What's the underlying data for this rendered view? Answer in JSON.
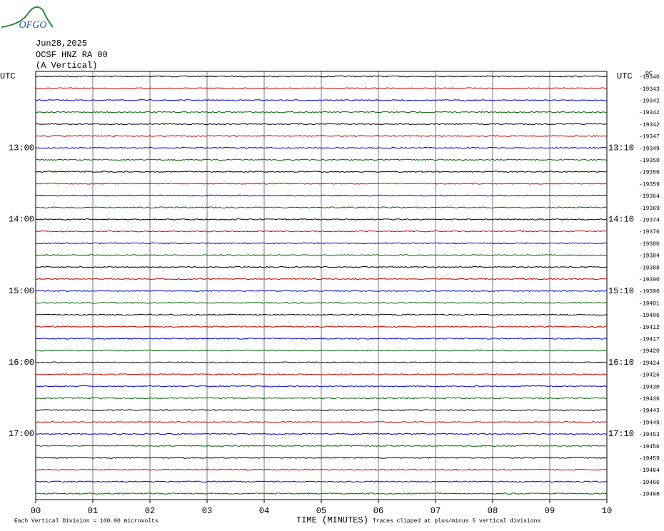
{
  "logo": "OFGO",
  "header": {
    "date": "Jun28,2025",
    "station": "OCSF HNZ RA 00",
    "component": "(A Vertical)"
  },
  "dc_header": "DC",
  "rows": [
    {
      "color": "#000000",
      "left_label": "UTC",
      "right_label": "UTC",
      "dc": -19340
    },
    {
      "color": "#cc0000",
      "left_label": null,
      "right_label": null,
      "dc": -19343
    },
    {
      "color": "#0000cc",
      "left_label": null,
      "right_label": null,
      "dc": -19342
    },
    {
      "color": "#006600",
      "left_label": null,
      "right_label": null,
      "dc": -19342
    },
    {
      "color": "#000000",
      "left_label": null,
      "right_label": null,
      "dc": -19342
    },
    {
      "color": "#cc0000",
      "left_label": null,
      "right_label": null,
      "dc": -19347
    },
    {
      "color": "#0000cc",
      "left_label": "13:00",
      "right_label": "13:10",
      "dc": -19349
    },
    {
      "color": "#006600",
      "left_label": null,
      "right_label": null,
      "dc": -19350
    },
    {
      "color": "#000000",
      "left_label": null,
      "right_label": null,
      "dc": -19356
    },
    {
      "color": "#cc0000",
      "left_label": null,
      "right_label": null,
      "dc": -19359
    },
    {
      "color": "#0000cc",
      "left_label": null,
      "right_label": null,
      "dc": -19364
    },
    {
      "color": "#006600",
      "left_label": null,
      "right_label": null,
      "dc": -19369
    },
    {
      "color": "#000000",
      "left_label": "14:00",
      "right_label": "14:10",
      "dc": -19374
    },
    {
      "color": "#cc0000",
      "left_label": null,
      "right_label": null,
      "dc": -19376
    },
    {
      "color": "#0000cc",
      "left_label": null,
      "right_label": null,
      "dc": -19380
    },
    {
      "color": "#006600",
      "left_label": null,
      "right_label": null,
      "dc": -19384
    },
    {
      "color": "#000000",
      "left_label": null,
      "right_label": null,
      "dc": -19388
    },
    {
      "color": "#cc0000",
      "left_label": null,
      "right_label": null,
      "dc": -19390
    },
    {
      "color": "#0000cc",
      "left_label": "15:00",
      "right_label": "15:10",
      "dc": -19396
    },
    {
      "color": "#006600",
      "left_label": null,
      "right_label": null,
      "dc": -19401
    },
    {
      "color": "#000000",
      "left_label": null,
      "right_label": null,
      "dc": -19406
    },
    {
      "color": "#cc0000",
      "left_label": null,
      "right_label": null,
      "dc": -19412
    },
    {
      "color": "#0000cc",
      "left_label": null,
      "right_label": null,
      "dc": -19417
    },
    {
      "color": "#006600",
      "left_label": null,
      "right_label": null,
      "dc": -19420
    },
    {
      "color": "#000000",
      "left_label": "16:00",
      "right_label": "16:10",
      "dc": -19424
    },
    {
      "color": "#cc0000",
      "left_label": null,
      "right_label": null,
      "dc": -19426
    },
    {
      "color": "#0000cc",
      "left_label": null,
      "right_label": null,
      "dc": -19430
    },
    {
      "color": "#006600",
      "left_label": null,
      "right_label": null,
      "dc": -19436
    },
    {
      "color": "#000000",
      "left_label": null,
      "right_label": null,
      "dc": -19443
    },
    {
      "color": "#cc0000",
      "left_label": null,
      "right_label": null,
      "dc": -19449
    },
    {
      "color": "#0000cc",
      "left_label": "17:00",
      "right_label": "17:10",
      "dc": -19453
    },
    {
      "color": "#006600",
      "left_label": null,
      "right_label": null,
      "dc": -19456
    },
    {
      "color": "#000000",
      "left_label": null,
      "right_label": null,
      "dc": -19459
    },
    {
      "color": "#cc0000",
      "left_label": null,
      "right_label": null,
      "dc": -19464
    },
    {
      "color": "#0000cc",
      "left_label": null,
      "right_label": null,
      "dc": -19466
    },
    {
      "color": "#006600",
      "left_label": null,
      "right_label": null,
      "dc": -19468
    }
  ],
  "x_axis": {
    "title": "TIME (MINUTES)",
    "ticks": [
      "00",
      "01",
      "02",
      "03",
      "04",
      "05",
      "06",
      "07",
      "08",
      "09",
      "10"
    ]
  },
  "footer": {
    "scale": "Each Vertical Division =  100.00 microvolts",
    "note": "Traces clipped at plus/minus 5 vertical divisions"
  }
}
